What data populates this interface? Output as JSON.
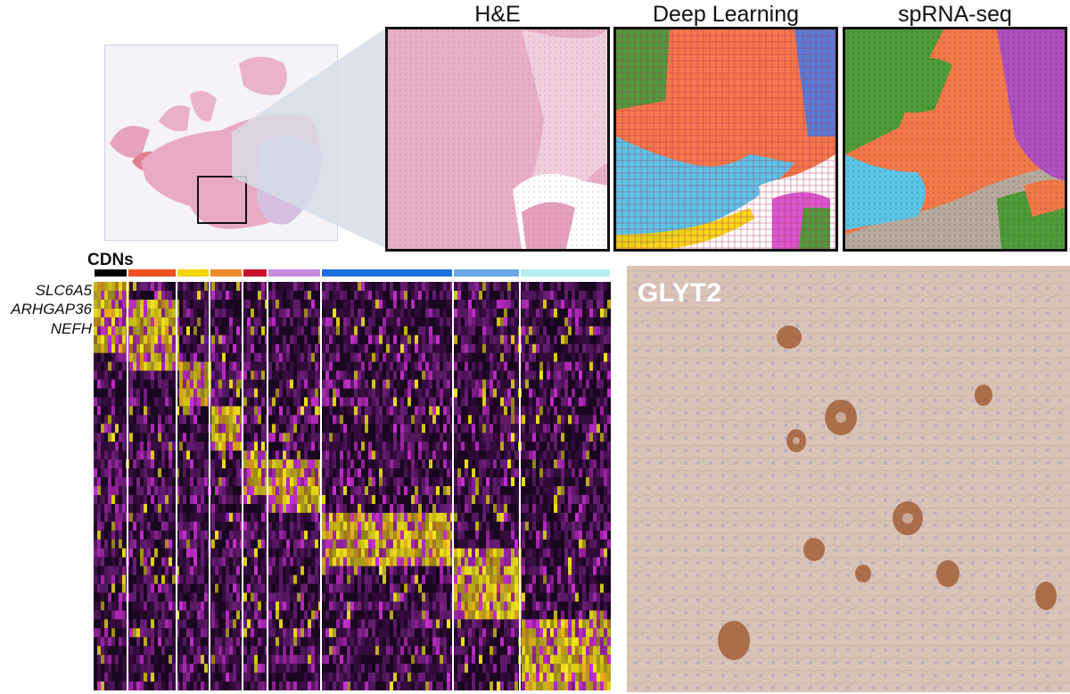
{
  "panels": {
    "he_title": "H&E",
    "dl_title": "Deep Learning",
    "sp_title": "spRNA-seq"
  },
  "heatmap": {
    "group_label": "CDNs",
    "genes": [
      "SLC6A5",
      "ARHGAP36",
      "NEFH"
    ],
    "cluster_colors": [
      "#000000",
      "#f04e23",
      "#f5d300",
      "#f08a2a",
      "#c8102e",
      "#c98be0",
      "#1e6fe0",
      "#6aa8e6",
      "#b5ecf0"
    ]
  },
  "ihc": {
    "label": "GLYT2"
  },
  "colors": {
    "he_pink": "#e7a9c3",
    "dl_orange": "#f3794a",
    "dl_green": "#4f9b3a",
    "dl_cyan": "#5ac5e8",
    "dl_magenta": "#d958d0",
    "heat_yellow": "#f4e51a",
    "heat_magenta": "#c92fd0",
    "heat_dark": "#2a0a2e"
  }
}
